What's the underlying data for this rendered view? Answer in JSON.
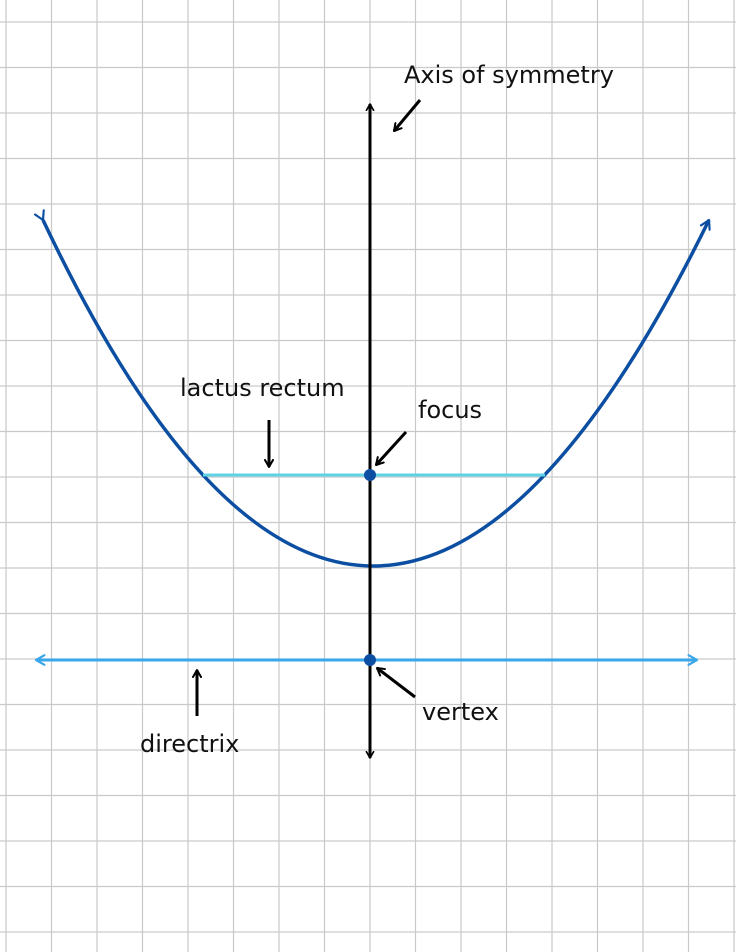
{
  "labels": {
    "axis_of_symmetry": "Axis of symmetry",
    "latus_rectum": "lactus rectum",
    "focus": "focus",
    "vertex": "vertex",
    "directrix": "directrix"
  },
  "colors": {
    "grid": "#c9c9c9",
    "parabola": "#0b4ea2",
    "latus_rectum": "#5fd3e6",
    "directrix": "#3aa7ea",
    "axis": "#000000",
    "point": "#0b4ea2",
    "text": "#111111",
    "background": "#ffffff"
  }
}
